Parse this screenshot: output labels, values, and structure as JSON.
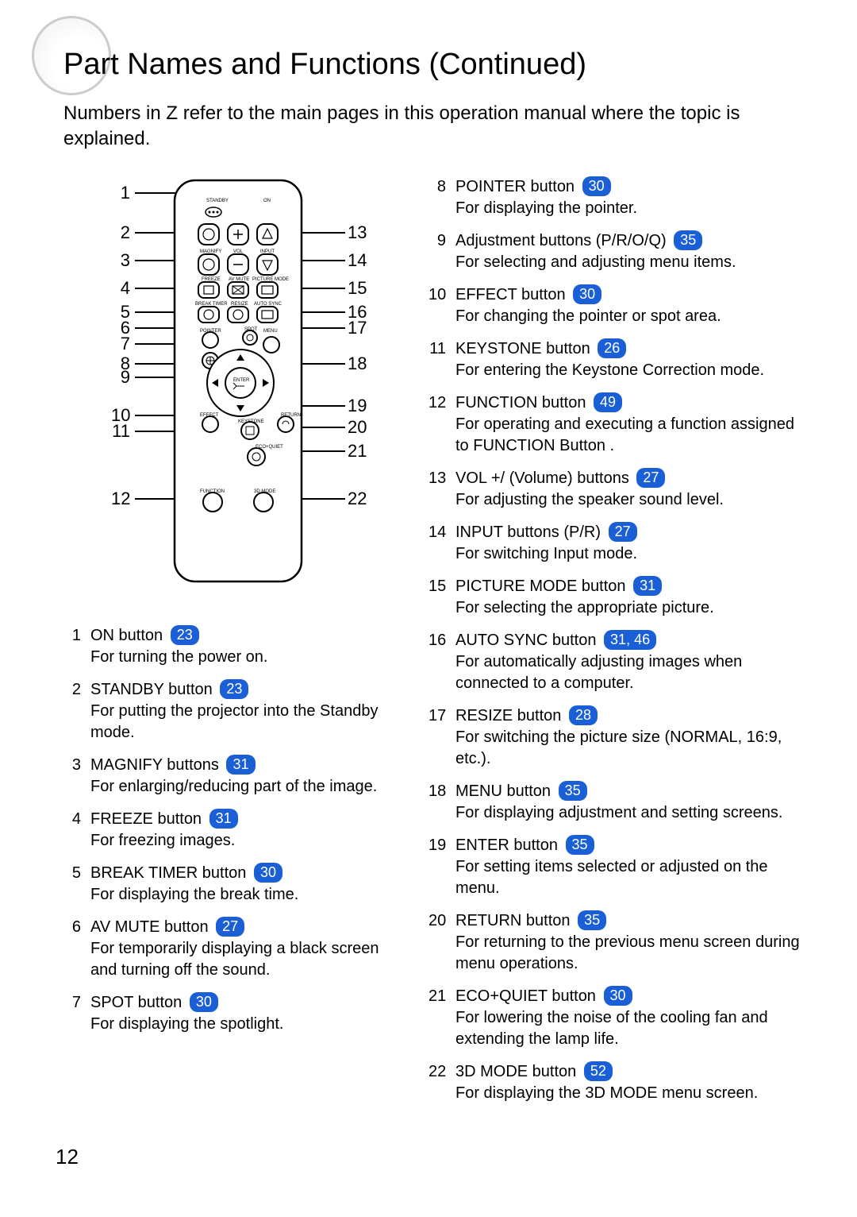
{
  "title": "Part Names and Functions (Continued)",
  "intro_a": "Numbers in ",
  "intro_z": "Z",
  "intro_b": " refer to the main pages in this operation manual where the topic is explained.",
  "page_number": "12",
  "page_ref_color": "#1a5fd6",
  "diagram": {
    "left_callouts": [
      1,
      2,
      3,
      4,
      5,
      6,
      7,
      8,
      9,
      10,
      11,
      12
    ],
    "right_callouts": [
      13,
      14,
      15,
      16,
      17,
      18,
      19,
      20,
      21,
      22
    ],
    "left_y": [
      10,
      60,
      95,
      130,
      160,
      180,
      200,
      225,
      242,
      290,
      310,
      395
    ],
    "right_y": [
      60,
      95,
      130,
      160,
      180,
      225,
      278,
      305,
      335,
      395
    ],
    "remote_labels": {
      "standby": "STANDBY",
      "on": "ON",
      "magnify": "MAGNIFY",
      "vol": "VOL",
      "input": "INPUT",
      "freeze": "FREEZE",
      "avmute": "AV MUTE",
      "picmode": "PICTURE MODE",
      "breaktimer": "BREAK TIMER",
      "resize": "RESIZE",
      "autosync": "AUTO SYNC",
      "pointer": "POINTER",
      "spot": "SPOT",
      "menu": "MENU",
      "enter": "ENTER",
      "effect": "EFFECT",
      "keystone": "KEYSTONE",
      "return": "RETURN",
      "ecoquiet": "ECO+QUIET",
      "function": "FUNCTION",
      "mode3d": "3D MODE"
    }
  },
  "items_left": [
    {
      "n": "1",
      "title": "ON button",
      "page": "23",
      "desc": "For turning the power on."
    },
    {
      "n": "2",
      "title": "STANDBY button",
      "page": "23",
      "desc": "For putting the projector into the Standby mode."
    },
    {
      "n": "3",
      "title": "MAGNIFY buttons",
      "page": "31",
      "desc": "For enlarging/reducing part of the image."
    },
    {
      "n": "4",
      "title": "FREEZE button",
      "page": "31",
      "desc": "For freezing images."
    },
    {
      "n": "5",
      "title": "BREAK TIMER button",
      "page": "30",
      "desc": "For displaying the break time."
    },
    {
      "n": "6",
      "title": "AV MUTE button",
      "page": "27",
      "desc": "For temporarily displaying a black screen and turning off the sound."
    },
    {
      "n": "7",
      "title": "SPOT button",
      "page": "30",
      "desc": "For displaying the spotlight."
    }
  ],
  "items_right": [
    {
      "n": "8",
      "title": "POINTER button",
      "page": "30",
      "desc": "For displaying the pointer."
    },
    {
      "n": "9",
      "title": "Adjustment buttons (P/R/O/Q)",
      "page": "35",
      "desc": "For selecting and adjusting menu items."
    },
    {
      "n": "10",
      "title": "EFFECT button",
      "page": "30",
      "desc": "For changing the pointer or spot area."
    },
    {
      "n": "11",
      "title": "KEYSTONE button",
      "page": "26",
      "desc": "For entering the Keystone Correction mode."
    },
    {
      "n": "12",
      "title": "FUNCTION button",
      "page": "49",
      "desc": "For operating and executing a function assigned to  FUNCTION Button ."
    },
    {
      "n": "13",
      "title": "VOL +/  (Volume) buttons",
      "page": "27",
      "desc": "For adjusting the speaker sound level."
    },
    {
      "n": "14",
      "title": "INPUT buttons (P/R)",
      "page": "27",
      "desc": "For switching Input mode."
    },
    {
      "n": "15",
      "title": "PICTURE MODE button",
      "page": "31",
      "desc": "For selecting the appropriate picture."
    },
    {
      "n": "16",
      "title": "AUTO SYNC button",
      "page": "31, 46",
      "desc": "For automatically adjusting images when connected to a computer."
    },
    {
      "n": "17",
      "title": "RESIZE button",
      "page": "28",
      "desc": "For switching the picture size (NORMAL, 16:9, etc.)."
    },
    {
      "n": "18",
      "title": "MENU button",
      "page": "35",
      "desc": "For displaying adjustment and setting screens."
    },
    {
      "n": "19",
      "title": "ENTER button",
      "page": "35",
      "desc": "For setting items selected or adjusted on the menu."
    },
    {
      "n": "20",
      "title": "RETURN button",
      "page": "35",
      "desc": "For returning to the previous menu screen during menu operations."
    },
    {
      "n": "21",
      "title": "ECO+QUIET button",
      "page": "30",
      "desc": "For lowering the noise of the cooling fan and extending the lamp life."
    },
    {
      "n": "22",
      "title": "3D MODE button",
      "page": "52",
      "desc": "For displaying the 3D MODE menu screen."
    }
  ]
}
